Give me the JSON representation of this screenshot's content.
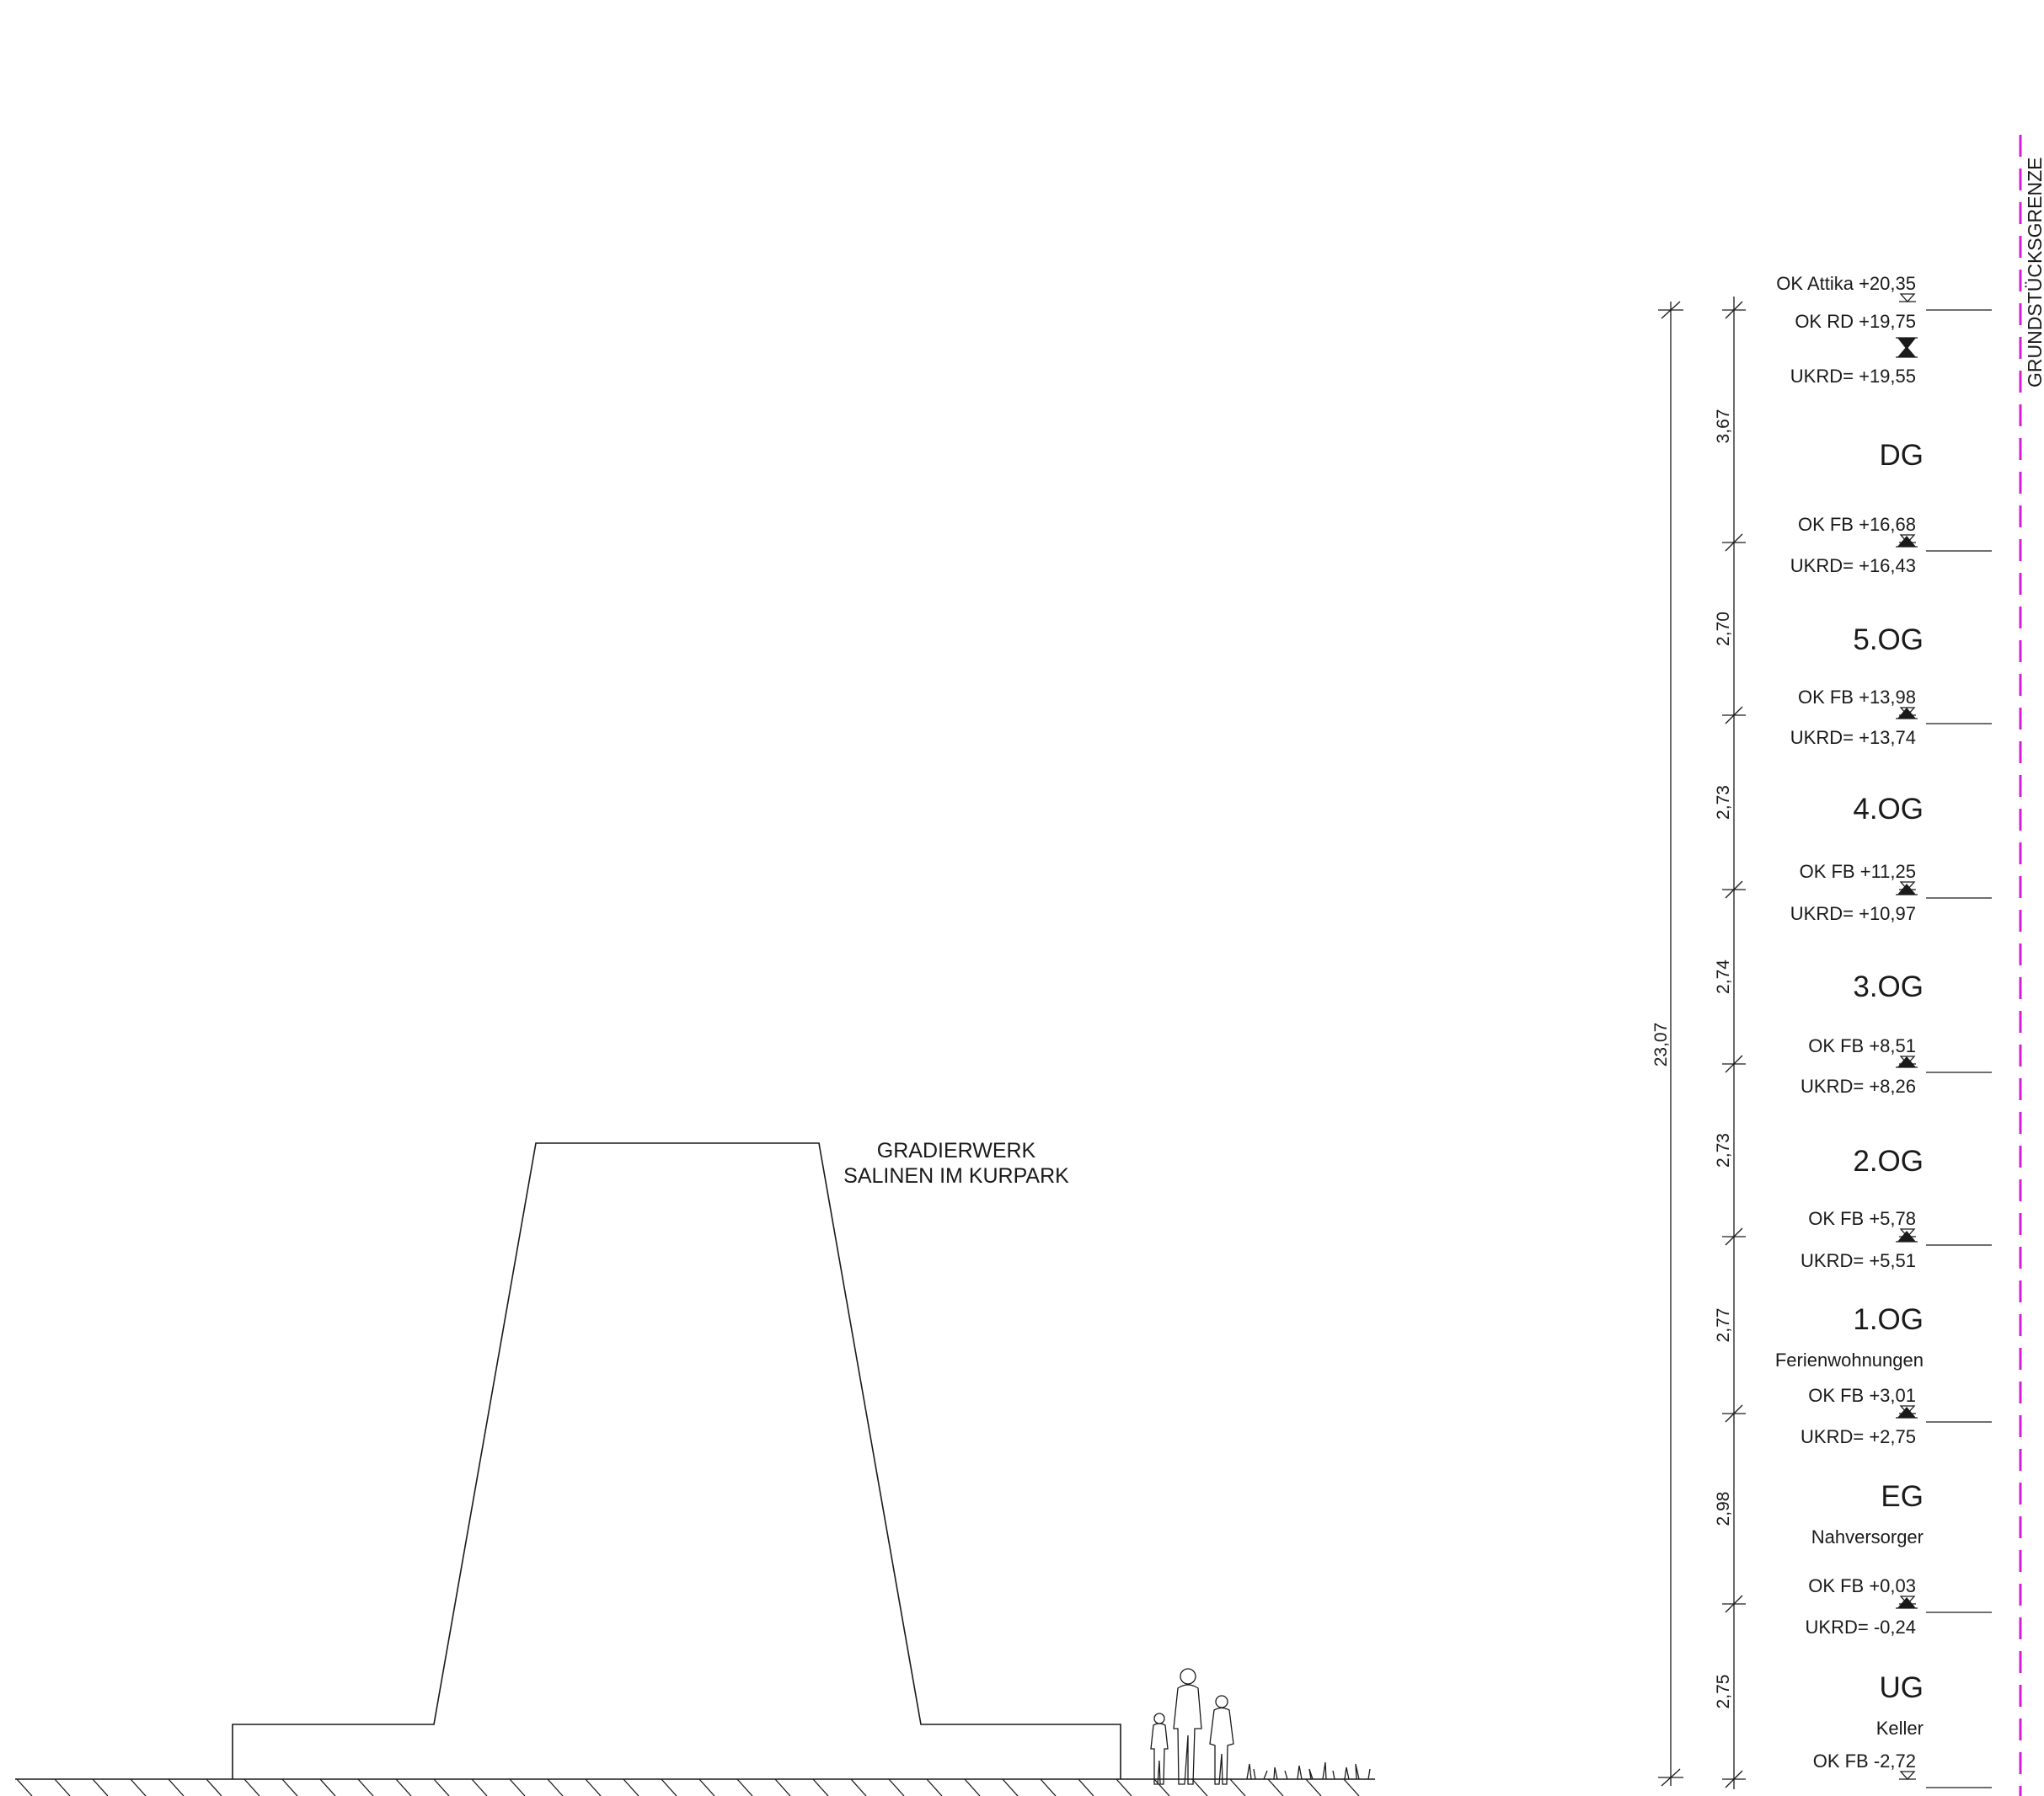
{
  "colors": {
    "line": "#1a1a1a",
    "property_boundary": "#d81bd8",
    "background": "#ffffff"
  },
  "gradierwerk": {
    "line1": "GRADIERWERK",
    "line2": "SALINEN IM KURPARK"
  },
  "property_boundary_label": "GRUNDSTÜCKSGRENZE",
  "total_height": "23,07",
  "levels": [
    {
      "label": "OK Attika +20,35",
      "kind": "ok",
      "elev": 20.35
    },
    {
      "label": "OK RD +19,75",
      "kind": "ok-filled",
      "elev": 19.75
    },
    {
      "label": "UKRD= +19,55",
      "kind": "uk",
      "elev": 19.55
    },
    {
      "label": "OK FB +16,68",
      "kind": "ok",
      "elev": 16.68
    },
    {
      "label": "UKRD= +16,43",
      "kind": "uk",
      "elev": 16.43
    },
    {
      "label": "OK FB +13,98",
      "kind": "ok",
      "elev": 13.98
    },
    {
      "label": "UKRD= +13,74",
      "kind": "uk",
      "elev": 13.74
    },
    {
      "label": "OK FB +11,25",
      "kind": "ok",
      "elev": 11.25
    },
    {
      "label": "UKRD= +10,97",
      "kind": "uk",
      "elev": 10.97
    },
    {
      "label": "OK FB +8,51",
      "kind": "ok",
      "elev": 8.51
    },
    {
      "label": "UKRD= +8,26",
      "kind": "uk",
      "elev": 8.26
    },
    {
      "label": "OK FB +5,78",
      "kind": "ok",
      "elev": 5.78
    },
    {
      "label": "UKRD= +5,51",
      "kind": "uk",
      "elev": 5.51
    },
    {
      "label": "OK FB +3,01",
      "kind": "ok",
      "elev": 3.01
    },
    {
      "label": "UKRD= +2,75",
      "kind": "uk",
      "elev": 2.75
    },
    {
      "label": "OK FB +0,03",
      "kind": "ok",
      "elev": 0.03
    },
    {
      "label": "UKRD= -0,24",
      "kind": "uk",
      "elev": -0.24
    },
    {
      "label": "OK FB -2,72",
      "kind": "ok",
      "elev": -2.72
    }
  ],
  "floors": [
    {
      "name": "DG",
      "use": ""
    },
    {
      "name": "5.OG",
      "use": ""
    },
    {
      "name": "4.OG",
      "use": ""
    },
    {
      "name": "3.OG",
      "use": ""
    },
    {
      "name": "2.OG",
      "use": ""
    },
    {
      "name": "1.OG",
      "use": "Ferienwohnungen"
    },
    {
      "name": "EG",
      "use": "Nahversorger"
    },
    {
      "name": "UG",
      "use": "Keller"
    }
  ],
  "story_heights": [
    "3,67",
    "2,70",
    "2,73",
    "2,74",
    "2,73",
    "2,77",
    "2,98",
    "2,75"
  ]
}
